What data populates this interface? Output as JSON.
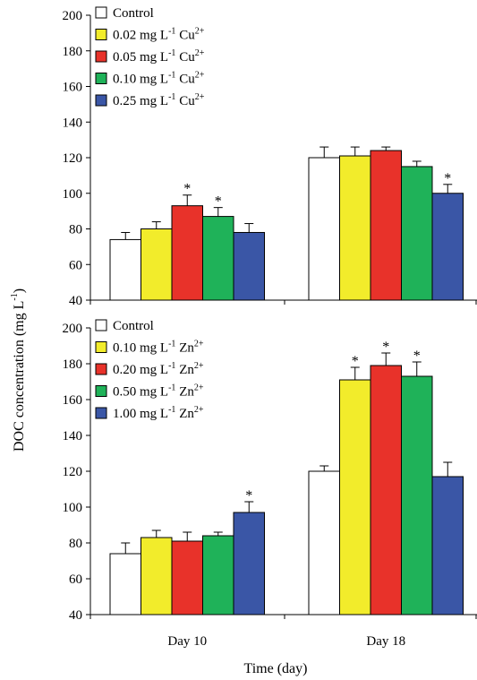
{
  "ylabel": "DOC concentration (mg L",
  "ylabel_sup": "-1",
  "ylabel_tail": ")",
  "xlabel": "Time (day)",
  "categories": [
    "Day 10",
    "Day 18"
  ],
  "colors": [
    "#ffffff",
    "#f2ec2b",
    "#e8322a",
    "#1fb259",
    "#3a56a6"
  ],
  "chart_data": [
    {
      "type": "bar",
      "categories": [
        "Day 10",
        "Day 18"
      ],
      "ylim": [
        40,
        200
      ],
      "yticks": [
        40,
        60,
        80,
        100,
        120,
        140,
        160,
        180,
        200
      ],
      "legend_position": "top-left",
      "series": [
        {
          "name": "Control",
          "values": [
            74,
            120
          ],
          "errors": [
            4,
            6
          ],
          "significant": [
            false,
            false
          ]
        },
        {
          "name": "0.02 mg L-1 Cu2+",
          "values": [
            80,
            121
          ],
          "errors": [
            4,
            5
          ],
          "significant": [
            false,
            false
          ]
        },
        {
          "name": "0.05 mg L-1 Cu2+",
          "values": [
            93,
            124
          ],
          "errors": [
            6,
            2
          ],
          "significant": [
            true,
            false
          ]
        },
        {
          "name": "0.10 mg L-1 Cu2+",
          "values": [
            87,
            115
          ],
          "errors": [
            5,
            3
          ],
          "significant": [
            true,
            false
          ]
        },
        {
          "name": "0.25 mg L-1 Cu2+",
          "values": [
            78,
            100
          ],
          "errors": [
            5,
            5
          ],
          "significant": [
            false,
            true
          ]
        }
      ],
      "legend": [
        {
          "pre": "Control",
          "sup1": "",
          "mid": "",
          "sup2": ""
        },
        {
          "pre": "0.02 mg L",
          "sup1": "-1",
          "mid": " Cu",
          "sup2": "2+"
        },
        {
          "pre": "0.05 mg L",
          "sup1": "-1",
          "mid": " Cu",
          "sup2": "2+"
        },
        {
          "pre": "0.10 mg L",
          "sup1": "-1",
          "mid": " Cu",
          "sup2": "2+"
        },
        {
          "pre": "0.25 mg L",
          "sup1": "-1",
          "mid": " Cu",
          "sup2": "2+"
        }
      ]
    },
    {
      "type": "bar",
      "categories": [
        "Day 10",
        "Day 18"
      ],
      "ylim": [
        40,
        200
      ],
      "yticks": [
        40,
        60,
        80,
        100,
        120,
        140,
        160,
        180,
        200
      ],
      "legend_position": "top-left",
      "series": [
        {
          "name": "Control",
          "values": [
            74,
            120
          ],
          "errors": [
            6,
            3
          ],
          "significant": [
            false,
            false
          ]
        },
        {
          "name": "0.10 mg L-1 Zn2+",
          "values": [
            83,
            171
          ],
          "errors": [
            4,
            7
          ],
          "significant": [
            false,
            true
          ]
        },
        {
          "name": "0.20 mg L-1 Zn2+",
          "values": [
            81,
            179
          ],
          "errors": [
            5,
            7
          ],
          "significant": [
            false,
            true
          ]
        },
        {
          "name": "0.50 mg L-1 Zn2+",
          "values": [
            84,
            173
          ],
          "errors": [
            2,
            8
          ],
          "significant": [
            false,
            true
          ]
        },
        {
          "name": "1.00 mg L-1 Zn2+",
          "values": [
            97,
            117
          ],
          "errors": [
            6,
            8
          ],
          "significant": [
            true,
            false
          ]
        }
      ],
      "legend": [
        {
          "pre": "Control",
          "sup1": "",
          "mid": "",
          "sup2": ""
        },
        {
          "pre": "0.10 mg L",
          "sup1": "-1",
          "mid": " Zn",
          "sup2": "2+"
        },
        {
          "pre": "0.20 mg L",
          "sup1": "-1",
          "mid": " Zn",
          "sup2": "2+"
        },
        {
          "pre": "0.50 mg L",
          "sup1": "-1",
          "mid": " Zn",
          "sup2": "2+"
        },
        {
          "pre": "1.00 mg L",
          "sup1": "-1",
          "mid": " Zn",
          "sup2": "2+"
        }
      ]
    }
  ]
}
